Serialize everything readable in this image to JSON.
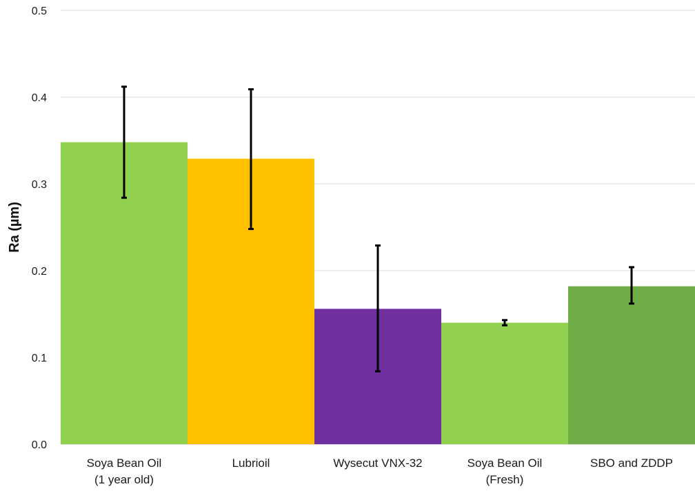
{
  "chart_data": {
    "type": "bar",
    "title": "",
    "xlabel": "",
    "ylabel": "Ra (µm)",
    "ylim": [
      0,
      0.5
    ],
    "yticks": [
      "0.0",
      "0.1",
      "0.2",
      "0.3",
      "0.4",
      "0.5"
    ],
    "grid": true,
    "categories": [
      {
        "line1": "Soya Bean Oil",
        "line2": "(1 year old)"
      },
      {
        "line1": "Lubrioil",
        "line2": ""
      },
      {
        "line1": "Wysecut VNX-32",
        "line2": ""
      },
      {
        "line1": "Soya Bean Oil",
        "line2": "(Fresh)"
      },
      {
        "line1": "SBO and ZDDP",
        "line2": ""
      }
    ],
    "values": [
      0.348,
      0.329,
      0.156,
      0.14,
      0.182
    ],
    "error_low": [
      0.284,
      0.248,
      0.084,
      0.137,
      0.162
    ],
    "error_high": [
      0.412,
      0.409,
      0.229,
      0.143,
      0.204
    ],
    "colors": [
      "#92d050",
      "#ffc000",
      "#7030a0",
      "#92d050",
      "#70ad47"
    ]
  }
}
